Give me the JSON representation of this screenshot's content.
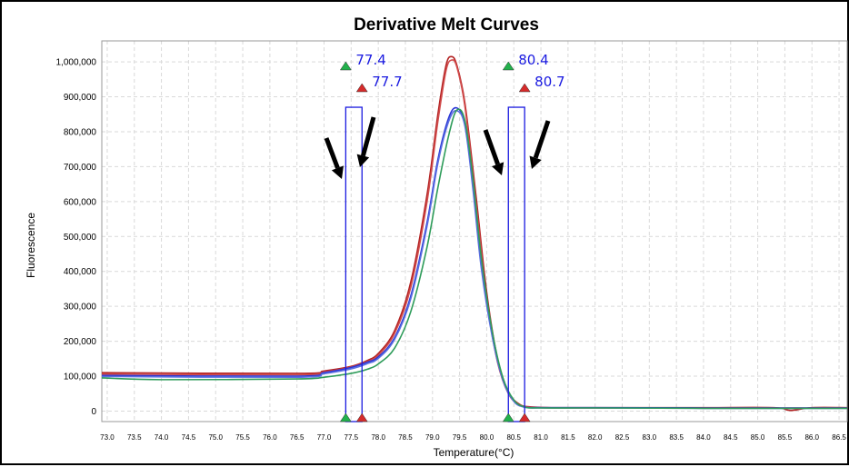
{
  "chart_data": {
    "type": "line",
    "title": "Derivative Melt Curves",
    "xlabel": "Temperature(°C)",
    "ylabel": "Fluorescence",
    "xlim": [
      72.9,
      86.65
    ],
    "ylim": [
      -30000,
      1060000
    ],
    "grid": true,
    "y_ticks": [
      0,
      100000,
      200000,
      300000,
      400000,
      500000,
      600000,
      700000,
      800000,
      900000,
      1000000
    ],
    "y_tick_labels": [
      "0",
      "100,000",
      "200,000",
      "300,000",
      "400,000",
      "500,000",
      "600,000",
      "700,000",
      "800,000",
      "900,000",
      "1,000,000"
    ],
    "x_tick_labels": [
      "73.0",
      "73.5",
      "74.0",
      "74.5",
      "75.0",
      "75.5",
      "76.0",
      "76.5",
      "77.0",
      "77.5",
      "78.0",
      "78.5",
      "79.0",
      "79.5",
      "80.0",
      "80.5",
      "81.0",
      "81.5",
      "82.0",
      "82.5",
      "83.0",
      "83.5",
      "84.0",
      "84.5",
      "85.0",
      "85.5",
      "86.0",
      "86.5"
    ],
    "series": [
      {
        "color": "#b22222",
        "x": [
          72.9,
          76.5,
          77.0,
          77.5,
          77.8,
          78.0,
          78.3,
          78.6,
          78.9,
          79.1,
          79.25,
          79.35,
          79.45,
          79.6,
          79.8,
          80.0,
          80.2,
          80.4,
          80.6,
          80.8,
          81.2,
          82.5,
          84.0,
          85.3,
          85.6,
          86.0,
          86.65
        ],
        "y": [
          110000,
          108000,
          115000,
          128000,
          145000,
          165000,
          230000,
          370000,
          620000,
          850000,
          990000,
          1015000,
          990000,
          880000,
          620000,
          340000,
          150000,
          55000,
          20000,
          12000,
          10000,
          10000,
          10000,
          10000,
          2000,
          10000,
          10000
        ]
      },
      {
        "color": "#d14b4b",
        "x": [
          72.9,
          76.5,
          77.0,
          77.5,
          77.8,
          78.0,
          78.3,
          78.6,
          78.9,
          79.1,
          79.25,
          79.35,
          79.45,
          79.6,
          79.8,
          80.0,
          80.2,
          80.4,
          80.6,
          80.8,
          81.2,
          82.5,
          84.0,
          86.65
        ],
        "y": [
          106000,
          104000,
          112000,
          126000,
          142000,
          160000,
          222000,
          355000,
          600000,
          830000,
          975000,
          1005000,
          985000,
          870000,
          600000,
          320000,
          140000,
          50000,
          18000,
          11000,
          9000,
          9000,
          9000,
          9000
        ]
      },
      {
        "color": "#2a36d6",
        "x": [
          72.9,
          76.5,
          77.0,
          77.5,
          77.8,
          78.0,
          78.3,
          78.6,
          78.9,
          79.1,
          79.3,
          79.45,
          79.6,
          79.75,
          79.9,
          80.1,
          80.3,
          80.5,
          80.7,
          81.0,
          82.0,
          84.0,
          86.65
        ],
        "y": [
          102000,
          100000,
          110000,
          125000,
          140000,
          155000,
          210000,
          330000,
          540000,
          720000,
          840000,
          868000,
          820000,
          640000,
          420000,
          220000,
          90000,
          30000,
          12000,
          10000,
          10000,
          9000,
          9000
        ]
      },
      {
        "color": "#5a6ee0",
        "x": [
          72.9,
          76.5,
          77.0,
          77.5,
          77.8,
          78.0,
          78.3,
          78.6,
          78.9,
          79.1,
          79.3,
          79.45,
          79.6,
          79.75,
          79.9,
          80.1,
          80.3,
          80.5,
          80.7,
          81.0,
          82.0,
          84.0,
          86.65
        ],
        "y": [
          99000,
          97000,
          107000,
          121000,
          136000,
          151000,
          205000,
          322000,
          530000,
          710000,
          830000,
          860000,
          815000,
          630000,
          410000,
          215000,
          88000,
          28000,
          11000,
          9000,
          9000,
          8000,
          8000
        ]
      },
      {
        "color": "#2e9c5a",
        "x": [
          72.9,
          74.0,
          76.5,
          77.0,
          77.5,
          77.8,
          78.0,
          78.3,
          78.6,
          78.9,
          79.1,
          79.3,
          79.45,
          79.6,
          79.75,
          79.9,
          80.1,
          80.3,
          80.5,
          80.7,
          81.0,
          82.0,
          84.0,
          86.65
        ],
        "y": [
          95000,
          90000,
          92000,
          97000,
          108000,
          120000,
          135000,
          180000,
          285000,
          470000,
          640000,
          790000,
          862000,
          830000,
          660000,
          440000,
          230000,
          95000,
          32000,
          12000,
          9000,
          9000,
          8000,
          8000
        ]
      }
    ],
    "annotations": [
      {
        "label": "77.4",
        "x": 77.4,
        "marker": "green-triangle"
      },
      {
        "label": "77.7",
        "x": 77.7,
        "marker": "red-triangle"
      },
      {
        "label": "80.4",
        "x": 80.4,
        "marker": "green-triangle"
      },
      {
        "label": "80.7",
        "x": 80.7,
        "marker": "red-triangle"
      }
    ],
    "boxes": [
      {
        "x0": 77.4,
        "x1": 77.7,
        "y_top": 870000
      },
      {
        "x0": 80.4,
        "x1": 80.7,
        "y_top": 870000
      }
    ],
    "arrows": [
      {
        "icon": "black-arrow-down-right",
        "near_x": 77.4
      },
      {
        "icon": "black-arrow-down-left",
        "near_x": 77.7
      },
      {
        "icon": "black-arrow-down-right",
        "near_x": 80.4
      },
      {
        "icon": "black-arrow-down-left",
        "near_x": 80.7
      }
    ]
  }
}
